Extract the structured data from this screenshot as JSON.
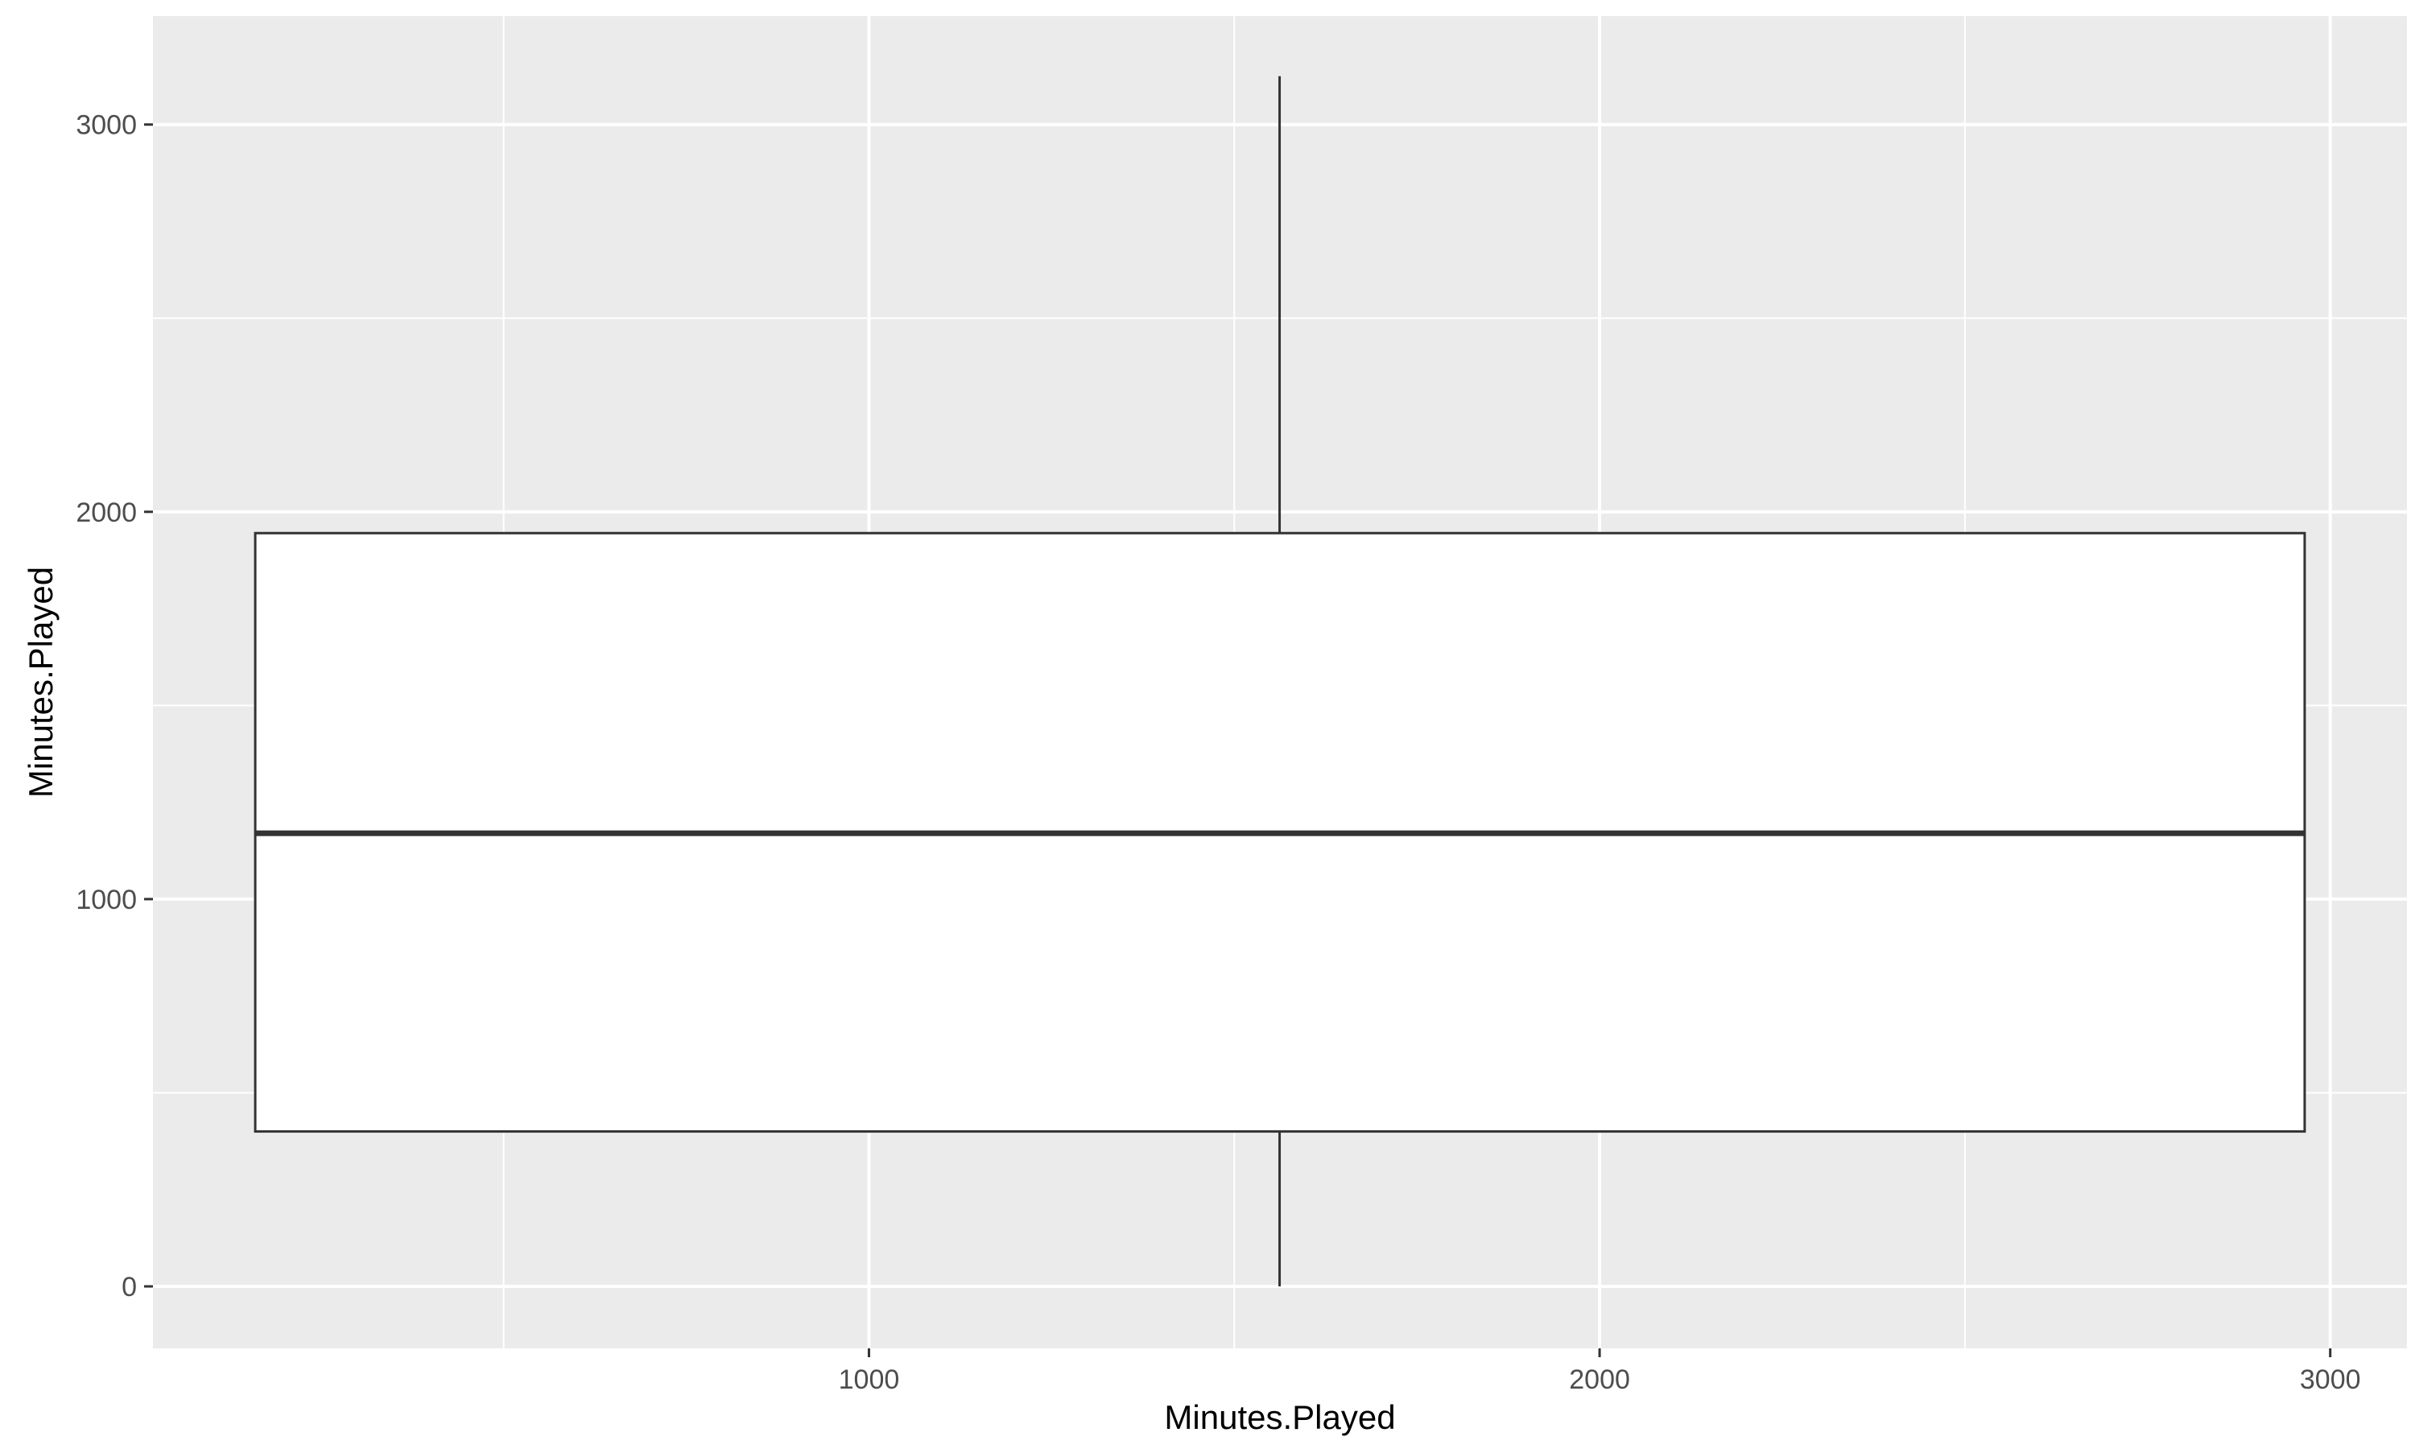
{
  "chart_data": {
    "type": "box",
    "xlabel": "Minutes.Played",
    "ylabel": "Minutes.Played",
    "xlim": [
      20,
      3105
    ],
    "ylim": [
      -160,
      3280
    ],
    "x_ticks": [
      1000,
      2000,
      3000
    ],
    "y_ticks": [
      0,
      1000,
      2000,
      3000
    ],
    "x_minor_ticks": [
      500,
      1500,
      2500
    ],
    "y_minor_ticks": [
      500,
      1500,
      2500
    ],
    "grid": true,
    "legend": "none",
    "box": {
      "x_left": 160,
      "x_right": 2965,
      "x_center": 1562,
      "min": 0,
      "q1": 400,
      "median": 1170,
      "q3": 1945,
      "max": 3125
    },
    "colors": {
      "panel_background": "#EBEBEB",
      "grid": "#FFFFFF",
      "box_fill": "#FFFFFF",
      "box_outline": "#333333",
      "tick_label": "#4D4D4D",
      "tick_mark": "#333333"
    }
  }
}
